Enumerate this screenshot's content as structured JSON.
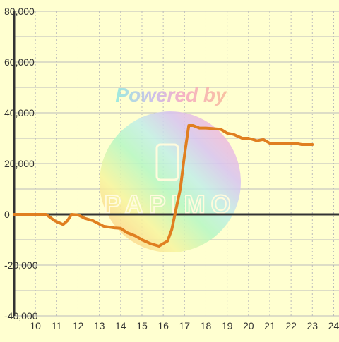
{
  "chart_data": {
    "type": "line",
    "title": "",
    "xlabel": "",
    "ylabel": "",
    "xlim": [
      9.0,
      24.25
    ],
    "ylim": [
      -40000,
      80000
    ],
    "x_ticks": [
      10,
      11,
      12,
      13,
      14,
      15,
      16,
      17,
      18,
      19,
      20,
      21,
      22,
      23,
      24
    ],
    "y_ticks": [
      80000,
      60000,
      40000,
      20000,
      0,
      -20000,
      -40000
    ],
    "y_tick_labels": [
      "80,000",
      "60,000",
      "40,000",
      "20,000",
      "0",
      "-20,000",
      "-40,000"
    ],
    "grid": true,
    "legend": "none",
    "series": [
      {
        "color": "#e07f20",
        "x": [
          9.0,
          10.5,
          10.9,
          11.3,
          11.5,
          11.7,
          12.0,
          12.3,
          12.7,
          13.2,
          13.7,
          14.0,
          14.3,
          14.7,
          15.0,
          15.4,
          15.8,
          16.2,
          16.4,
          16.6,
          16.8,
          17.0,
          17.2,
          17.4,
          17.7,
          18.0,
          18.3,
          18.7,
          19.0,
          19.3,
          19.7,
          20.0,
          20.4,
          20.7,
          21.0,
          21.5,
          21.9,
          22.2,
          22.5,
          23.0
        ],
        "y": [
          0,
          0,
          -2500,
          -4000,
          -2500,
          0,
          -200,
          -1500,
          -2500,
          -4700,
          -5300,
          -5500,
          -7200,
          -8500,
          -10000,
          -11500,
          -12500,
          -10500,
          -6000,
          2000,
          10000,
          23500,
          35000,
          35000,
          34000,
          34000,
          33800,
          33500,
          32000,
          31500,
          30000,
          30000,
          29000,
          29500,
          28000,
          28000,
          28000,
          28000,
          27500,
          27500
        ]
      }
    ],
    "line_color": "#e07f20",
    "axis_color": "#333333",
    "grid_color": "#bbbbbb",
    "background": "#ffffd0"
  },
  "watermark": {
    "text": "Powered by",
    "logo_text": "PAPIMO"
  }
}
